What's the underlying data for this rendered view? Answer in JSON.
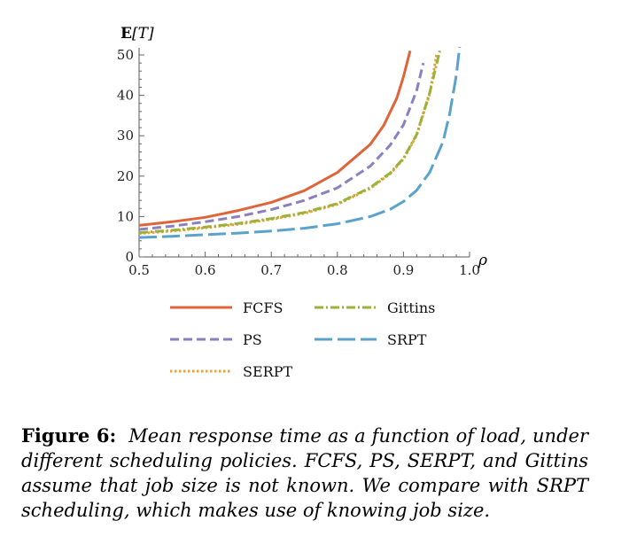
{
  "chart_data": {
    "type": "line",
    "ylabel_bold": "E",
    "ylabel_rest": "[T]",
    "xlabel": "ρ",
    "xlim": [
      0.5,
      1.0
    ],
    "ylim": [
      0,
      50
    ],
    "xticks": [
      0.5,
      0.6,
      0.7,
      0.8,
      0.9,
      1.0
    ],
    "xtick_labels": [
      "0.5",
      "0.6",
      "0.7",
      "0.8",
      "0.9",
      "1.0"
    ],
    "yticks": [
      0,
      10,
      20,
      30,
      40,
      50
    ],
    "ytick_labels": [
      "0",
      "10",
      "20",
      "30",
      "40",
      "50"
    ],
    "legend_position": "bottom",
    "series": [
      {
        "name": "FCFS",
        "color": "#e0643a",
        "dash": "solid",
        "x": [
          0.5,
          0.55,
          0.6,
          0.65,
          0.7,
          0.75,
          0.8,
          0.85,
          0.87,
          0.89,
          0.9,
          0.91
        ],
        "y": [
          7.8,
          8.7,
          9.8,
          11.5,
          13.5,
          16.4,
          20.9,
          27.9,
          32.5,
          39.3,
          44.6,
          51.0
        ]
      },
      {
        "name": "PS",
        "color": "#8b7fbf",
        "dash": "dashed",
        "x": [
          0.5,
          0.55,
          0.6,
          0.65,
          0.7,
          0.75,
          0.8,
          0.85,
          0.88,
          0.9,
          0.92,
          0.93
        ],
        "y": [
          6.8,
          7.6,
          8.7,
          10.0,
          11.7,
          14.0,
          17.1,
          22.5,
          27.7,
          32.7,
          41.2,
          48.0
        ]
      },
      {
        "name": "SERPT",
        "color": "#f0a032",
        "dash": "dotted",
        "x": [
          0.5,
          0.55,
          0.6,
          0.65,
          0.7,
          0.75,
          0.8,
          0.85,
          0.88,
          0.9,
          0.92,
          0.94,
          0.95
        ],
        "y": [
          5.8,
          6.4,
          7.2,
          8.1,
          9.3,
          10.8,
          13.0,
          17.0,
          20.6,
          24.2,
          30.1,
          40.5,
          50.0
        ]
      },
      {
        "name": "Gittins",
        "color": "#9ab23a",
        "dash": "dashdot",
        "x": [
          0.5,
          0.55,
          0.6,
          0.65,
          0.7,
          0.75,
          0.8,
          0.85,
          0.88,
          0.9,
          0.92,
          0.94,
          0.955
        ],
        "y": [
          6.0,
          6.6,
          7.4,
          8.3,
          9.5,
          11.0,
          13.2,
          17.2,
          20.8,
          24.4,
          30.3,
          40.8,
          51.0
        ]
      },
      {
        "name": "SRPT",
        "color": "#5aa2cc",
        "dash": "longdash",
        "x": [
          0.5,
          0.55,
          0.6,
          0.65,
          0.7,
          0.75,
          0.8,
          0.85,
          0.88,
          0.9,
          0.92,
          0.94,
          0.96,
          0.97,
          0.98,
          0.985
        ],
        "y": [
          4.8,
          5.1,
          5.5,
          5.9,
          6.4,
          7.1,
          8.2,
          10.0,
          11.8,
          13.7,
          16.5,
          21.0,
          28.6,
          35.5,
          45.0,
          52.0
        ]
      }
    ],
    "legend_order": [
      "FCFS",
      "Gittins",
      "PS",
      "SRPT",
      "SERPT"
    ]
  },
  "caption": {
    "label": "Figure 6:",
    "text": "Mean response time as a function of load, under different scheduling policies. FCFS, PS, SERPT, and Gittins assume that job size is not known. We compare with SRPT scheduling, which makes use of knowing job size."
  }
}
